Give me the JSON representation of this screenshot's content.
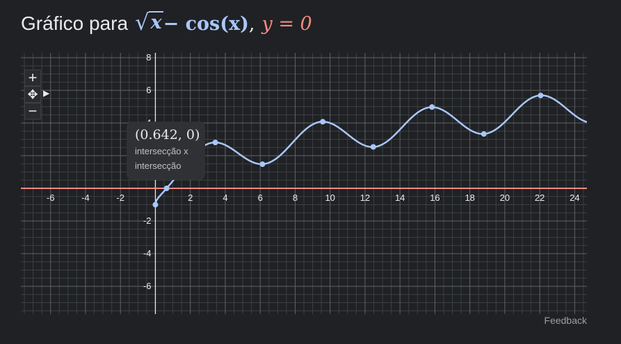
{
  "title": {
    "prefix": "Gráfico para",
    "function": "√x − cos(x)",
    "sqrt_arg": "x",
    "rest": " − cos(x)",
    "separator": ",",
    "equation2": "y = 0"
  },
  "controls": {
    "zoom_in": "+",
    "pan": "✥",
    "pan_arrow": "▶",
    "zoom_out": "−"
  },
  "tooltip": {
    "coord": "(0.642, 0)",
    "line1": "intersecção x",
    "line2": "intersecção"
  },
  "feedback": "Feedback",
  "colors": {
    "background": "#202124",
    "curve": "#a8c7fa",
    "hline": "#f28b82",
    "axis": "#e8eaed",
    "grid_major": "#5f6368",
    "grid_minor": "#3c4043"
  },
  "chart_data": {
    "type": "line",
    "xlim": [
      -7.7,
      24.7
    ],
    "ylim": [
      -7.7,
      8.3
    ],
    "x_ticks": [
      -6,
      -4,
      -2,
      2,
      4,
      6,
      8,
      10,
      12,
      14,
      16,
      18,
      20,
      22,
      24
    ],
    "y_ticks": [
      -6,
      -4,
      -2,
      2,
      4,
      6,
      8
    ],
    "grid": true,
    "series": [
      {
        "expression": "sqrt(x) - cos(x)",
        "domain": [
          0,
          24.7
        ],
        "color": "#a8c7fa"
      },
      {
        "expression": "0",
        "domain": [
          -7.7,
          24.7
        ],
        "color": "#f28b82"
      }
    ],
    "points": [
      {
        "x": 0,
        "y": -1
      },
      {
        "x": 0.642,
        "y": 0
      },
      {
        "x": 3.43,
        "y": 2.81
      },
      {
        "x": 6.13,
        "y": 1.48
      },
      {
        "x": 9.58,
        "y": 4.08
      },
      {
        "x": 12.47,
        "y": 2.54
      },
      {
        "x": 15.83,
        "y": 4.98
      },
      {
        "x": 18.8,
        "y": 3.33
      },
      {
        "x": 22.05,
        "y": 5.69
      }
    ]
  }
}
